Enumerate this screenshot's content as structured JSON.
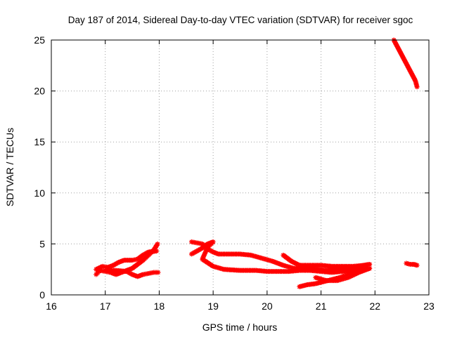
{
  "chart_data": {
    "type": "scatter",
    "title": "Day 187 of 2014, Sidereal Day-to-day VTEC variation (SDTVAR) for receiver sgoc",
    "xlabel": "GPS time / hours",
    "ylabel": "SDTVAR / TECUs",
    "xlim": [
      16,
      23
    ],
    "ylim": [
      0,
      25
    ],
    "xticks": [
      16,
      17,
      18,
      19,
      20,
      21,
      22,
      23
    ],
    "yticks": [
      0,
      5,
      10,
      15,
      20,
      25
    ],
    "grid": true,
    "legend": "none",
    "marker": "asterisk",
    "series_color": "#ff0000",
    "series": [
      {
        "points": [
          [
            16.83,
            2.0
          ],
          [
            16.9,
            2.4
          ],
          [
            17.0,
            2.3
          ],
          [
            17.1,
            2.2
          ],
          [
            17.2,
            2.0
          ],
          [
            17.3,
            2.2
          ],
          [
            17.4,
            2.4
          ],
          [
            17.5,
            2.6
          ],
          [
            17.6,
            3.0
          ],
          [
            17.7,
            3.4
          ],
          [
            17.8,
            3.9
          ],
          [
            17.9,
            4.4
          ],
          [
            17.97,
            5.0
          ]
        ]
      },
      {
        "points": [
          [
            16.83,
            2.5
          ],
          [
            16.95,
            2.8
          ],
          [
            17.05,
            2.7
          ],
          [
            17.15,
            2.9
          ],
          [
            17.25,
            3.2
          ],
          [
            17.35,
            3.4
          ],
          [
            17.5,
            3.4
          ],
          [
            17.6,
            3.5
          ],
          [
            17.7,
            3.9
          ],
          [
            17.8,
            4.2
          ],
          [
            17.95,
            4.3
          ]
        ]
      },
      {
        "points": [
          [
            17.0,
            2.4
          ],
          [
            17.2,
            2.4
          ],
          [
            17.4,
            2.3
          ],
          [
            17.5,
            2.0
          ],
          [
            17.6,
            1.8
          ],
          [
            17.7,
            2.0
          ],
          [
            17.8,
            2.1
          ],
          [
            17.9,
            2.2
          ],
          [
            17.98,
            2.2
          ]
        ]
      },
      {
        "points": [
          [
            18.6,
            5.2
          ],
          [
            18.7,
            5.1
          ],
          [
            18.8,
            5.0
          ],
          [
            18.9,
            4.5
          ],
          [
            19.0,
            4.2
          ],
          [
            19.1,
            4.0
          ],
          [
            19.3,
            4.0
          ],
          [
            19.5,
            4.0
          ],
          [
            19.7,
            3.9
          ],
          [
            19.9,
            3.6
          ],
          [
            20.1,
            3.3
          ],
          [
            20.3,
            2.9
          ],
          [
            20.5,
            2.6
          ],
          [
            20.7,
            2.6
          ],
          [
            20.9,
            2.5
          ],
          [
            21.1,
            2.4
          ],
          [
            21.3,
            2.5
          ],
          [
            21.5,
            2.6
          ],
          [
            21.7,
            2.8
          ],
          [
            21.9,
            3.0
          ]
        ]
      },
      {
        "points": [
          [
            18.6,
            4.0
          ],
          [
            18.7,
            4.3
          ],
          [
            18.8,
            4.6
          ],
          [
            18.9,
            5.0
          ],
          [
            19.0,
            5.2
          ],
          [
            18.9,
            4.7
          ],
          [
            18.8,
            3.5
          ],
          [
            19.0,
            2.8
          ],
          [
            19.2,
            2.5
          ],
          [
            19.5,
            2.4
          ],
          [
            19.8,
            2.4
          ],
          [
            20.0,
            2.3
          ],
          [
            20.2,
            2.3
          ],
          [
            20.4,
            2.3
          ],
          [
            20.6,
            2.4
          ],
          [
            20.8,
            2.4
          ],
          [
            21.0,
            2.3
          ],
          [
            21.2,
            2.2
          ],
          [
            21.4,
            2.3
          ],
          [
            21.6,
            2.4
          ],
          [
            21.8,
            2.5
          ],
          [
            21.9,
            2.6
          ]
        ]
      },
      {
        "points": [
          [
            20.3,
            3.9
          ],
          [
            20.45,
            3.3
          ],
          [
            20.6,
            2.9
          ],
          [
            20.8,
            2.9
          ],
          [
            21.0,
            2.9
          ],
          [
            21.2,
            2.8
          ],
          [
            21.4,
            2.8
          ],
          [
            21.6,
            2.8
          ],
          [
            21.8,
            2.9
          ],
          [
            21.9,
            3.0
          ]
        ]
      },
      {
        "points": [
          [
            20.6,
            0.8
          ],
          [
            20.75,
            1.0
          ],
          [
            20.9,
            1.1
          ],
          [
            21.05,
            1.3
          ],
          [
            21.2,
            1.5
          ],
          [
            21.35,
            1.7
          ],
          [
            21.5,
            2.0
          ],
          [
            21.65,
            2.2
          ],
          [
            21.8,
            2.5
          ],
          [
            21.9,
            2.6
          ]
        ]
      },
      {
        "points": [
          [
            20.9,
            1.7
          ],
          [
            21.1,
            1.4
          ],
          [
            21.3,
            1.4
          ],
          [
            21.5,
            1.7
          ],
          [
            21.7,
            2.2
          ],
          [
            21.9,
            2.6
          ]
        ]
      },
      {
        "points": [
          [
            22.35,
            25.0
          ],
          [
            22.45,
            24.0
          ],
          [
            22.55,
            23.0
          ],
          [
            22.65,
            22.0
          ],
          [
            22.75,
            21.0
          ],
          [
            22.78,
            20.4
          ]
        ]
      },
      {
        "points": [
          [
            22.58,
            3.1
          ],
          [
            22.65,
            3.0
          ],
          [
            22.72,
            3.0
          ],
          [
            22.78,
            2.9
          ]
        ]
      }
    ]
  }
}
